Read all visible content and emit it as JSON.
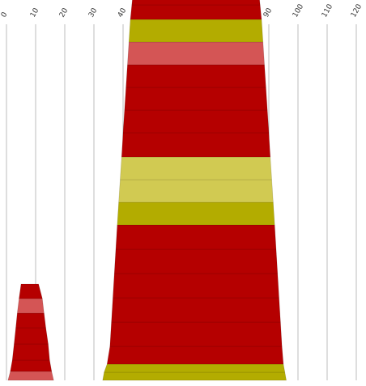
{
  "chart_data": {
    "type": "bar",
    "title": "",
    "xlabel": "",
    "ylabel": "",
    "grid": true,
    "legend": "none",
    "xlim": [
      0,
      120
    ],
    "ticks": [
      0,
      10,
      20,
      30,
      40,
      50,
      60,
      70,
      80,
      90,
      100,
      110,
      120
    ],
    "tick_labels": [
      "0",
      "10",
      "20",
      "30",
      "40",
      "50",
      "60",
      "70",
      "80",
      "90",
      "100",
      "110",
      "120"
    ],
    "colors": {
      "red": "#b50000",
      "pink": "#d45555",
      "olive": "#b3ac00",
      "lightolive": "#d1ca52"
    },
    "shapes": [
      {
        "name": "small-stack",
        "segments": [
          {
            "bottom": [
              0.5,
              16.2
            ],
            "top": [
              1.3,
              15.5
            ],
            "color": "pink"
          },
          {
            "bottom": [
              1.3,
              15.5
            ],
            "top": [
              2.0,
              14.8
            ],
            "color": "red"
          },
          {
            "bottom": [
              2.0,
              14.8
            ],
            "top": [
              2.6,
              14.3
            ],
            "color": "red"
          },
          {
            "bottom": [
              2.6,
              14.3
            ],
            "top": [
              3.2,
              13.5
            ],
            "color": "red"
          },
          {
            "bottom": [
              3.2,
              13.5
            ],
            "top": [
              3.7,
              12.9
            ],
            "color": "red"
          },
          {
            "bottom": [
              3.7,
              12.9
            ],
            "top": [
              4.3,
              12.3
            ],
            "color": "pink"
          },
          {
            "bottom": [
              4.3,
              12.3
            ],
            "top": [
              5.0,
              11.0
            ],
            "color": "red"
          }
        ]
      },
      {
        "name": "large-stack",
        "segments": [
          {
            "bottom": [
              33.0,
              96.0
            ],
            "top": [
              33.5,
              95.5
            ],
            "color": "olive"
          },
          {
            "bottom": [
              33.5,
              95.5
            ],
            "top": [
              34.5,
              95.0
            ],
            "color": "olive"
          },
          {
            "bottom": [
              34.5,
              95.0
            ],
            "top": [
              35.5,
              94.5
            ],
            "color": "red"
          },
          {
            "bottom": [
              35.5,
              94.5
            ],
            "top": [
              36.0,
              94.0
            ],
            "color": "red"
          },
          {
            "bottom": [
              36.0,
              94.0
            ],
            "top": [
              36.5,
              93.5
            ],
            "color": "red"
          },
          {
            "bottom": [
              36.5,
              93.5
            ],
            "top": [
              37.0,
              93.0
            ],
            "color": "red"
          },
          {
            "bottom": [
              37.0,
              93.0
            ],
            "top": [
              37.5,
              92.5
            ],
            "color": "red"
          },
          {
            "bottom": [
              37.5,
              92.5
            ],
            "top": [
              38.0,
              92.0
            ],
            "color": "red"
          },
          {
            "bottom": [
              38.0,
              92.0
            ],
            "top": [
              38.5,
              91.5
            ],
            "color": "olive"
          },
          {
            "bottom": [
              38.5,
              91.5
            ],
            "top": [
              39.0,
              91.0
            ],
            "color": "lightolive"
          },
          {
            "bottom": [
              39.0,
              91.0
            ],
            "top": [
              39.5,
              90.5
            ],
            "color": "lightolive"
          },
          {
            "bottom": [
              39.5,
              90.5
            ],
            "top": [
              40.0,
              90.0
            ],
            "color": "red"
          },
          {
            "bottom": [
              40.0,
              90.0
            ],
            "top": [
              40.5,
              89.5
            ],
            "color": "red"
          },
          {
            "bottom": [
              40.5,
              89.5
            ],
            "top": [
              41.0,
              89.0
            ],
            "color": "red"
          },
          {
            "bottom": [
              41.0,
              89.0
            ],
            "top": [
              41.5,
              88.5
            ],
            "color": "red"
          },
          {
            "bottom": [
              41.5,
              88.5
            ],
            "top": [
              42.0,
              88.0
            ],
            "color": "pink"
          },
          {
            "bottom": [
              42.0,
              88.0
            ],
            "top": [
              42.5,
              87.5
            ],
            "color": "olive"
          },
          {
            "bottom": [
              42.5,
              87.5
            ],
            "top": [
              43.0,
              87.0
            ],
            "color": "red"
          },
          {
            "bottom": [
              43.0,
              87.0
            ],
            "top": [
              43.5,
              86.5
            ],
            "color": "red"
          },
          {
            "bottom": [
              43.5,
              86.5
            ],
            "top": [
              44.0,
              86.0
            ],
            "color": "red"
          },
          {
            "bottom": [
              44.0,
              86.0
            ],
            "top": [
              44.5,
              85.5
            ],
            "color": "pink"
          },
          {
            "bottom": [
              44.5,
              85.5
            ],
            "top": [
              45.0,
              85.0
            ],
            "color": "red"
          }
        ]
      }
    ]
  }
}
